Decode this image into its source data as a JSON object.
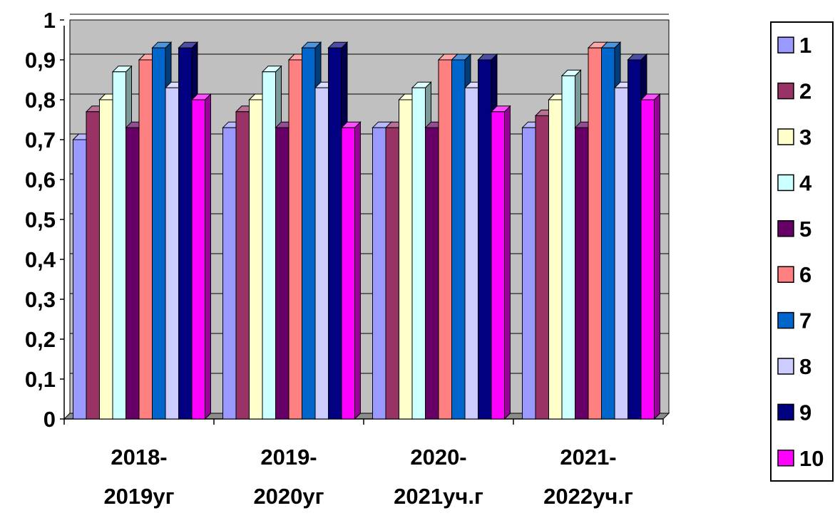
{
  "chart_data": {
    "type": "bar",
    "style": "3d-clustered-column",
    "categories": [
      [
        "2018-",
        "2019уг"
      ],
      [
        "2019-",
        "2020уг"
      ],
      [
        "2020-",
        "2021уч.г"
      ],
      [
        "2021-",
        "2022уч.г"
      ]
    ],
    "series": [
      {
        "name": "1",
        "color": "#9999ff",
        "values": [
          0.7,
          0.73,
          0.73,
          0.73
        ]
      },
      {
        "name": "2",
        "color": "#993366",
        "values": [
          0.77,
          0.77,
          0.73,
          0.76
        ]
      },
      {
        "name": "3",
        "color": "#ffffcc",
        "values": [
          0.8,
          0.8,
          0.8,
          0.8
        ]
      },
      {
        "name": "4",
        "color": "#ccffff",
        "values": [
          0.87,
          0.87,
          0.83,
          0.86
        ]
      },
      {
        "name": "5",
        "color": "#660066",
        "values": [
          0.73,
          0.73,
          0.73,
          0.73
        ]
      },
      {
        "name": "6",
        "color": "#ff8080",
        "values": [
          0.9,
          0.9,
          0.9,
          0.93
        ]
      },
      {
        "name": "7",
        "color": "#0066cc",
        "values": [
          0.93,
          0.93,
          0.9,
          0.93
        ]
      },
      {
        "name": "8",
        "color": "#ccccff",
        "values": [
          0.83,
          0.83,
          0.83,
          0.83
        ]
      },
      {
        "name": "9",
        "color": "#000080",
        "values": [
          0.93,
          0.93,
          0.9,
          0.9
        ]
      },
      {
        "name": "10",
        "color": "#ff00ff",
        "values": [
          0.8,
          0.73,
          0.77,
          0.8
        ]
      }
    ],
    "y_ticks": [
      "0",
      "0,1",
      "0,2",
      "0,3",
      "0,4",
      "0,5",
      "0,6",
      "0,7",
      "0,8",
      "0,9",
      "1"
    ],
    "ylim": [
      0,
      1
    ],
    "grid": true,
    "wall_color": "#c0c0c0",
    "legend_position": "right"
  }
}
